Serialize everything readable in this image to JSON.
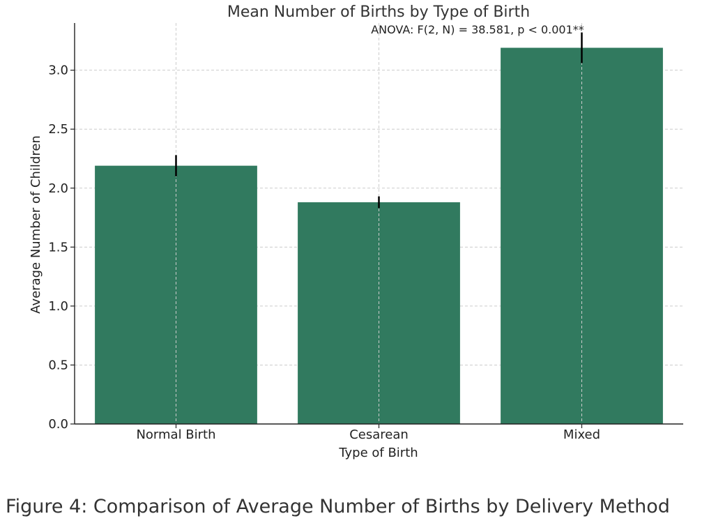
{
  "chart_data": {
    "type": "bar",
    "title": "Mean Number of Births by Type of Birth",
    "annotation": "ANOVA: F(2, N) = 38.581, p < 0.001**",
    "xlabel": "Type of Birth",
    "ylabel": "Average Number of Children",
    "categories": [
      "Normal Birth",
      "Cesarean",
      "Mixed"
    ],
    "values": [
      2.19,
      1.88,
      3.19
    ],
    "errors": [
      0.09,
      0.05,
      0.13
    ],
    "ylim": [
      0,
      3.4
    ],
    "yticks": [
      "0.0",
      "0.5",
      "1.0",
      "1.5",
      "2.0",
      "2.5",
      "3.0"
    ],
    "grid": true,
    "bar_color": "#317a5f",
    "error_color": "#000000"
  },
  "caption": "Figure 4: Comparison of Average Number of Births by Delivery Method"
}
